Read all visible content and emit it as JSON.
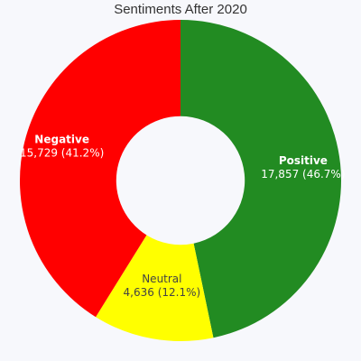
{
  "chart_data": {
    "type": "pie",
    "title": "Sentiments After 2020",
    "hole": 0.4,
    "slices": [
      {
        "name": "Positive",
        "value": 17857,
        "value_label": "17,857",
        "percent_label": "46.7%",
        "color": "#228b22",
        "text_color": "#ffffff"
      },
      {
        "name": "Neutral",
        "value": 4636,
        "value_label": "4,636",
        "percent_label": "12.1%",
        "color": "#ffff00",
        "text_color": "#444444"
      },
      {
        "name": "Negative",
        "value": 15729,
        "value_label": "15,729",
        "percent_label": "41.2%",
        "color": "#ff0000",
        "text_color": "#ffffff"
      }
    ]
  }
}
